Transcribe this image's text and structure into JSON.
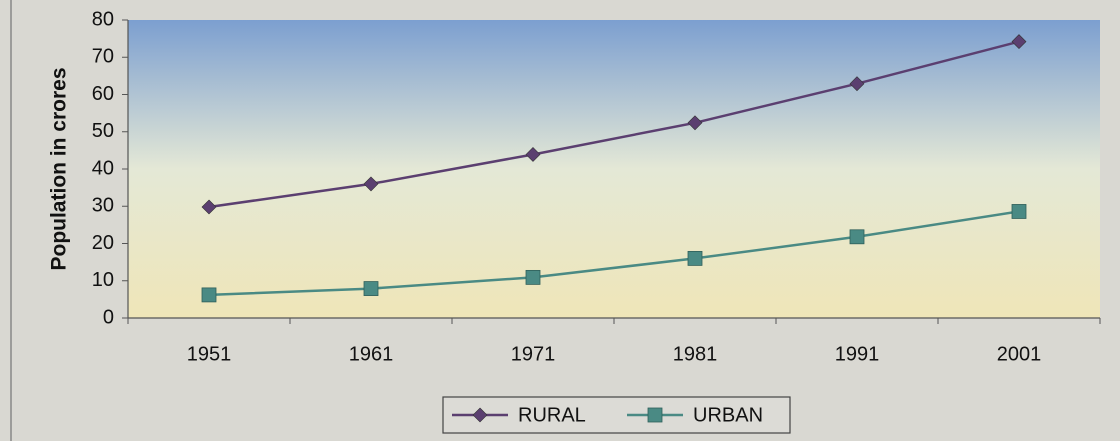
{
  "chart_data": {
    "type": "line",
    "y_label": "Population in crores",
    "categories": [
      "1951",
      "1961",
      "1971",
      "1981",
      "1991",
      "2001"
    ],
    "series": [
      {
        "name": "RURAL",
        "color": "#5b3f70",
        "marker": "diamond",
        "values": [
          29.8,
          36.0,
          43.9,
          52.4,
          62.9,
          74.2
        ]
      },
      {
        "name": "URBAN",
        "color": "#4a8a84",
        "marker": "square",
        "values": [
          6.2,
          7.9,
          10.9,
          16.0,
          21.8,
          28.6
        ]
      }
    ],
    "ylim": [
      0,
      80
    ],
    "yticks": [
      0,
      10,
      20,
      30,
      40,
      50,
      60,
      70,
      80
    ],
    "legend": "bottom"
  }
}
